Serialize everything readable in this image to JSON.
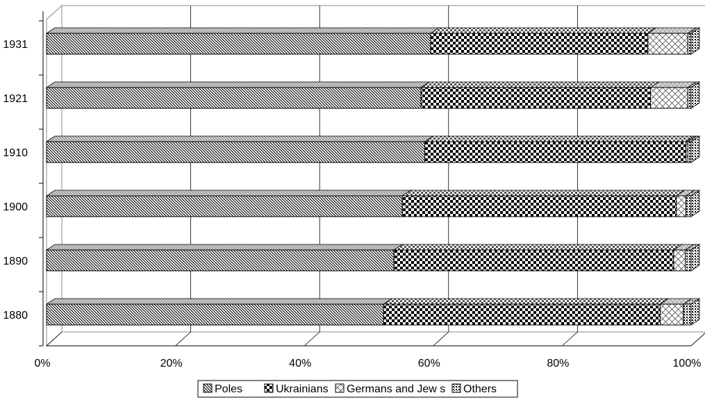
{
  "chart_data": {
    "type": "bar",
    "orientation": "horizontal",
    "stacked": "percent",
    "categories": [
      "1880",
      "1890",
      "1900",
      "1910",
      "1921",
      "1931"
    ],
    "series": [
      {
        "name": "Poles",
        "values": [
          52.3,
          53.9,
          55.2,
          58.7,
          58.1,
          59.6
        ]
      },
      {
        "name": "Ukrainians",
        "values": [
          42.9,
          43.4,
          42.5,
          40.5,
          35.6,
          33.7
        ]
      },
      {
        "name": "Germans and Jew s",
        "values": [
          3.6,
          1.8,
          1.5,
          0.3,
          5.8,
          6.2
        ]
      },
      {
        "name": "Others",
        "values": [
          1.2,
          0.9,
          0.8,
          0.5,
          0.5,
          0.5
        ]
      }
    ],
    "xticks": [
      "0%",
      "20%",
      "40%",
      "60%",
      "80%",
      "100%"
    ],
    "xlim": [
      0,
      100
    ],
    "grid": "vertical",
    "legend_position": "bottom"
  }
}
